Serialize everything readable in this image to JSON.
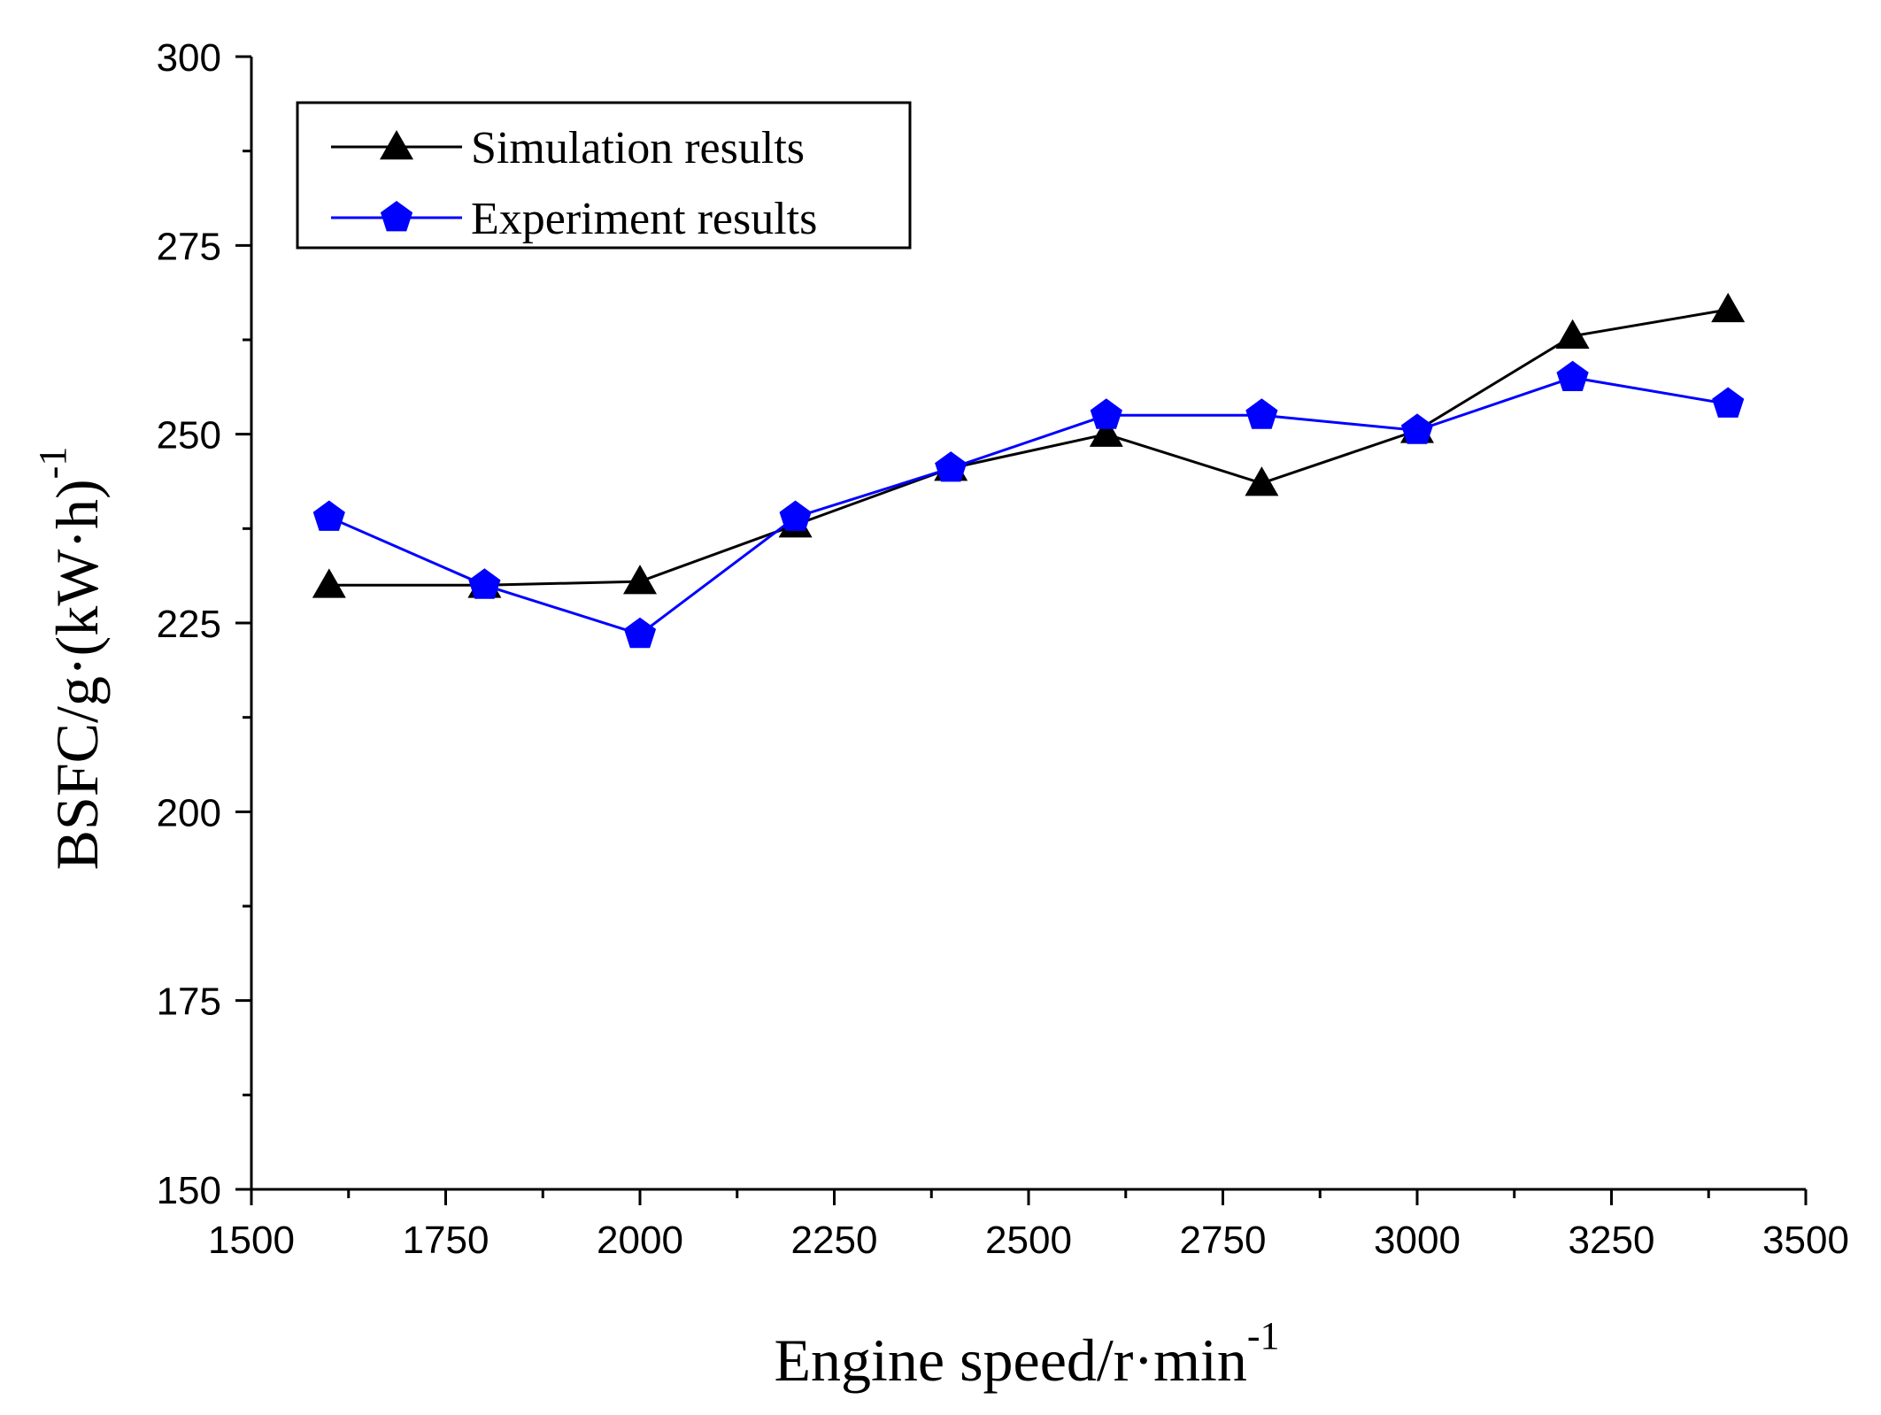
{
  "chart_data": {
    "type": "line",
    "title": "",
    "xlabel": "Engine speed/r·min",
    "xlabel_sup": "-1",
    "ylabel": "BSFC/g·(kW·h)",
    "ylabel_sup": "-1",
    "xlim": [
      1500,
      3500
    ],
    "ylim": [
      150,
      300
    ],
    "xticks": [
      1500,
      1750,
      2000,
      2250,
      2500,
      2750,
      3000,
      3250,
      3500
    ],
    "yticks": [
      150,
      175,
      200,
      225,
      250,
      275,
      300
    ],
    "grid": false,
    "legend_position": "top-left",
    "series": [
      {
        "name": "Simulation results",
        "color": "#000000",
        "marker": "triangle",
        "x": [
          1600,
          1800,
          2000,
          2200,
          2400,
          2600,
          2800,
          3000,
          3200,
          3400
        ],
        "y": [
          230,
          230,
          230.5,
          238,
          245.5,
          250,
          243.5,
          250.5,
          263,
          266.5
        ]
      },
      {
        "name": "Experiment results",
        "color": "#0000ff",
        "marker": "pentagon",
        "x": [
          1600,
          1800,
          2000,
          2200,
          2400,
          2600,
          2800,
          3000,
          3200,
          3400
        ],
        "y": [
          239,
          230,
          223.5,
          239,
          245.5,
          252.5,
          252.5,
          250.5,
          257.5,
          254
        ]
      }
    ]
  }
}
